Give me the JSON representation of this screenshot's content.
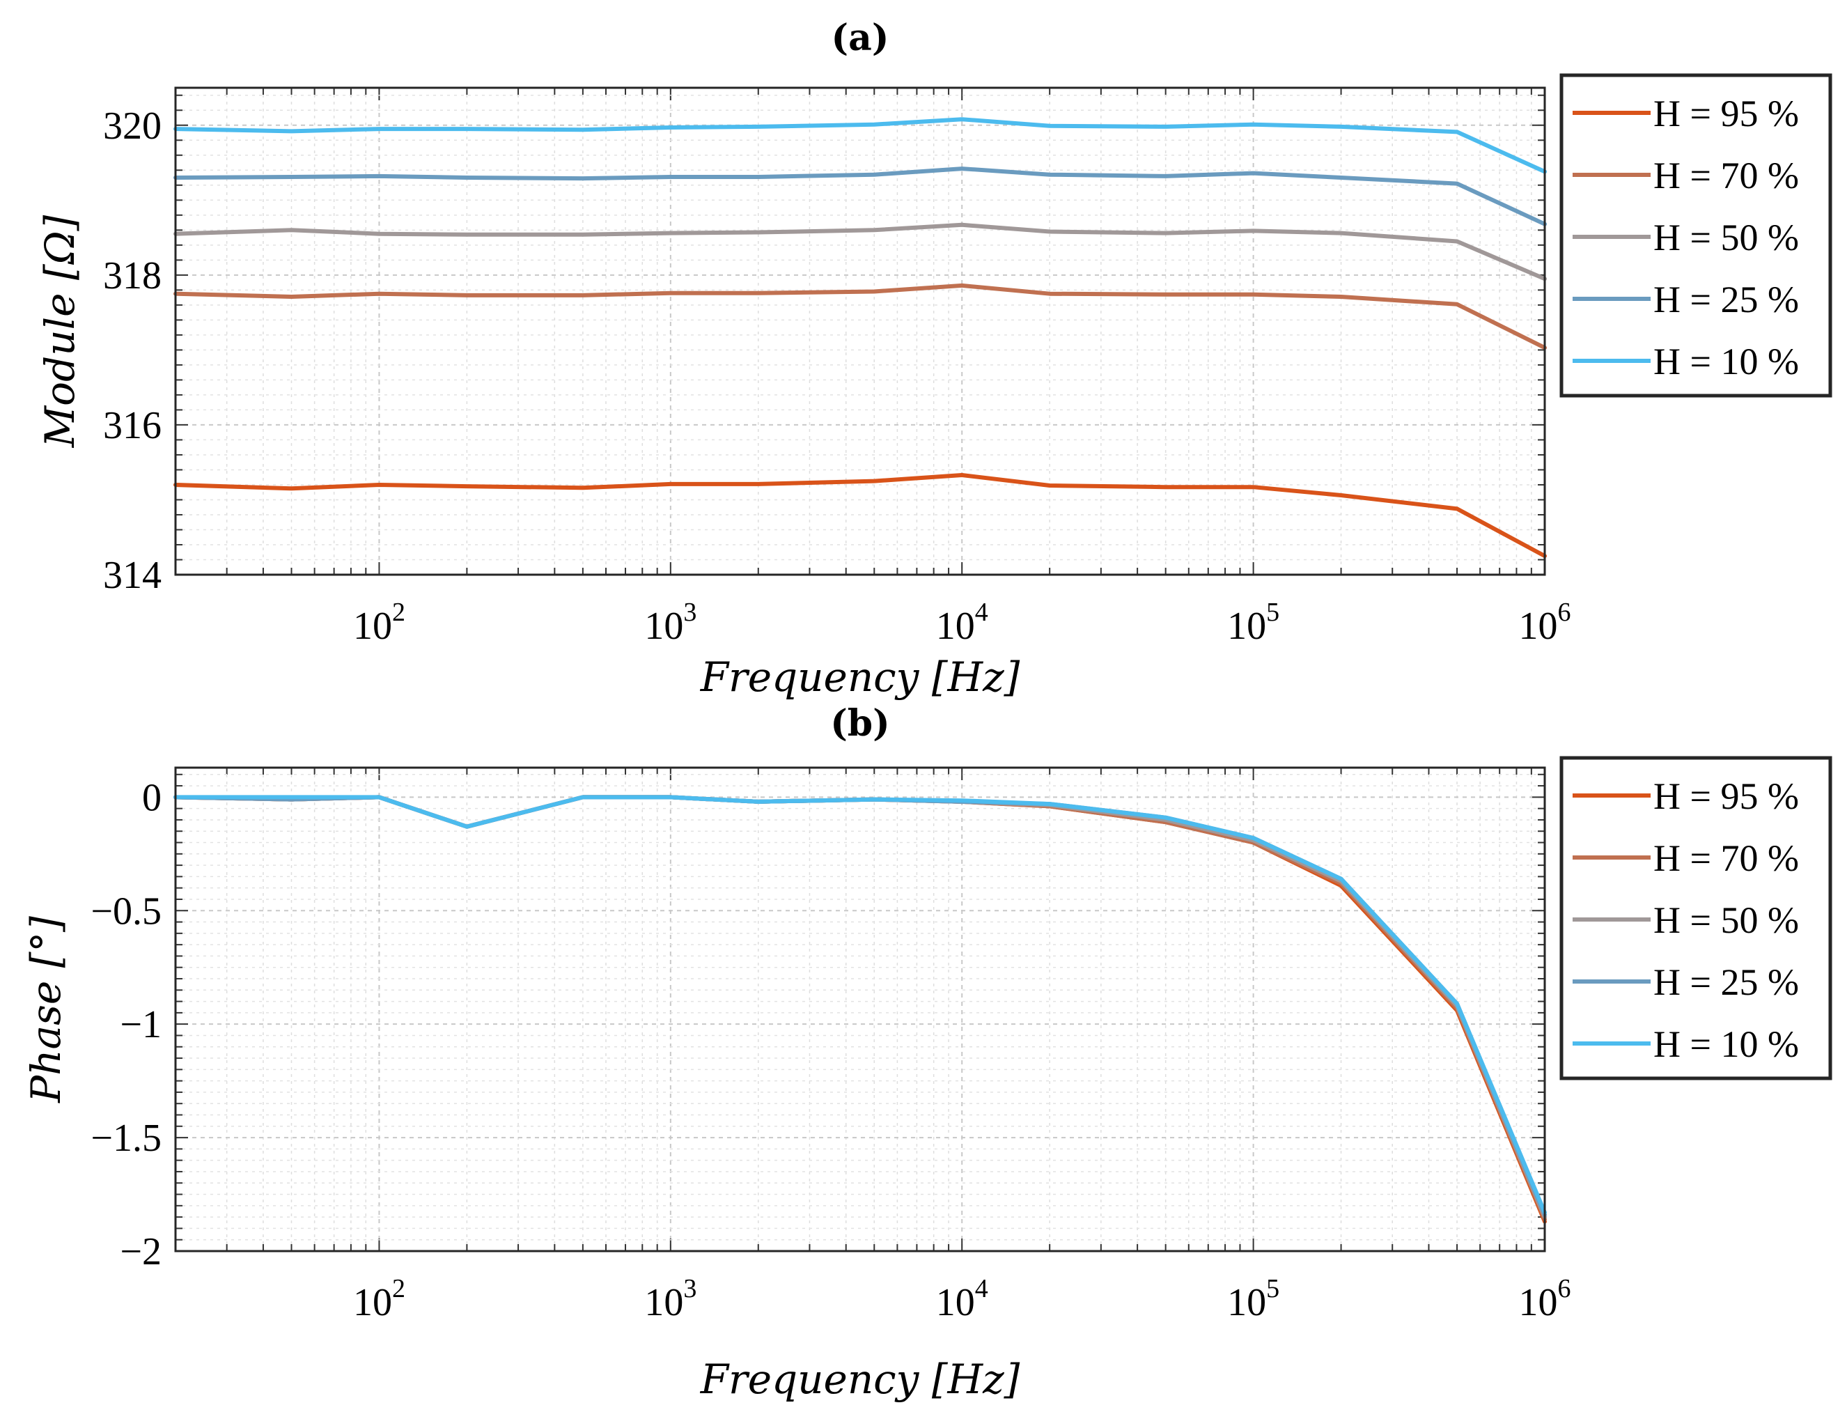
{
  "colors": {
    "H95": "#d95319",
    "H70": "#c07050",
    "H50": "#a09898",
    "H25": "#6a9bbf",
    "H10": "#4cbbee"
  },
  "chart_data": [
    {
      "type": "line",
      "title": "(a)",
      "xlabel": "Frequency [Hz]",
      "ylabel": "Module [Ω]",
      "xscale": "log",
      "xlim": [
        20,
        1000000
      ],
      "ylim": [
        314,
        320.5
      ],
      "yticks": [
        {
          "value": 314,
          "label": "314"
        },
        {
          "value": 316,
          "label": "316"
        },
        {
          "value": 318,
          "label": "318"
        },
        {
          "value": 320,
          "label": "320"
        }
      ],
      "xticks": [
        {
          "value": 100,
          "base": "10",
          "exp": "2"
        },
        {
          "value": 1000,
          "base": "10",
          "exp": "3"
        },
        {
          "value": 10000,
          "base": "10",
          "exp": "4"
        },
        {
          "value": 100000,
          "base": "10",
          "exp": "5"
        },
        {
          "value": 1000000,
          "base": "10",
          "exp": "6"
        }
      ],
      "grid": true,
      "legend_position": "outside-right-top",
      "x": [
        20,
        50,
        100,
        200,
        500,
        1000,
        2000,
        5000,
        10000,
        20000,
        50000,
        100000,
        200000,
        500000,
        1000000
      ],
      "series": [
        {
          "name": "H = 95 %",
          "color_key": "H95",
          "values": [
            315.2,
            315.15,
            315.2,
            315.18,
            315.16,
            315.21,
            315.21,
            315.25,
            315.33,
            315.19,
            315.17,
            315.17,
            315.06,
            314.88,
            314.25
          ]
        },
        {
          "name": "H = 70 %",
          "color_key": "H70",
          "values": [
            317.75,
            317.71,
            317.75,
            317.73,
            317.73,
            317.76,
            317.76,
            317.78,
            317.86,
            317.75,
            317.74,
            317.74,
            317.71,
            317.61,
            317.03
          ]
        },
        {
          "name": "H = 50 %",
          "color_key": "H50",
          "values": [
            318.55,
            318.6,
            318.55,
            318.54,
            318.54,
            318.56,
            318.57,
            318.6,
            318.67,
            318.58,
            318.56,
            318.59,
            318.56,
            318.45,
            317.95
          ]
        },
        {
          "name": "H = 25 %",
          "color_key": "H25",
          "values": [
            319.3,
            319.31,
            319.32,
            319.3,
            319.29,
            319.31,
            319.31,
            319.34,
            319.42,
            319.34,
            319.32,
            319.36,
            319.3,
            319.22,
            318.68
          ]
        },
        {
          "name": "H = 10 %",
          "color_key": "H10",
          "values": [
            319.95,
            319.92,
            319.95,
            319.95,
            319.94,
            319.97,
            319.98,
            320.01,
            320.08,
            319.99,
            319.98,
            320.01,
            319.98,
            319.91,
            319.38
          ]
        }
      ]
    },
    {
      "type": "line",
      "title": "(b)",
      "xlabel": "Frequency [Hz]",
      "ylabel": "Phase [°]",
      "xscale": "log",
      "xlim": [
        20,
        1000000
      ],
      "ylim": [
        -2,
        0.13
      ],
      "yticks": [
        {
          "value": 0,
          "label": "0"
        },
        {
          "value": -0.5,
          "label": "−0.5"
        },
        {
          "value": -1,
          "label": "−1"
        },
        {
          "value": -1.5,
          "label": "−1.5"
        },
        {
          "value": -2,
          "label": "−2"
        }
      ],
      "xticks": [
        {
          "value": 100,
          "base": "10",
          "exp": "2"
        },
        {
          "value": 1000,
          "base": "10",
          "exp": "3"
        },
        {
          "value": 10000,
          "base": "10",
          "exp": "4"
        },
        {
          "value": 100000,
          "base": "10",
          "exp": "5"
        },
        {
          "value": 1000000,
          "base": "10",
          "exp": "6"
        }
      ],
      "grid": true,
      "legend_position": "outside-right-top",
      "x": [
        20,
        50,
        100,
        200,
        500,
        1000,
        2000,
        5000,
        10000,
        20000,
        50000,
        100000,
        200000,
        500000,
        1000000
      ],
      "series": [
        {
          "name": "H = 95 %",
          "color_key": "H95",
          "values": [
            0,
            -0.01,
            0,
            -0.13,
            0,
            0,
            -0.02,
            -0.01,
            -0.02,
            -0.04,
            -0.11,
            -0.2,
            -0.39,
            -0.94,
            -1.87
          ]
        },
        {
          "name": "H = 70 %",
          "color_key": "H70",
          "values": [
            0,
            -0.01,
            0,
            -0.13,
            0,
            0,
            -0.02,
            -0.01,
            -0.02,
            -0.04,
            -0.11,
            -0.2,
            -0.38,
            -0.93,
            -1.86
          ]
        },
        {
          "name": "H = 50 %",
          "color_key": "H50",
          "values": [
            0,
            -0.01,
            0,
            -0.13,
            0,
            0,
            -0.02,
            -0.01,
            -0.02,
            -0.035,
            -0.1,
            -0.19,
            -0.37,
            -0.92,
            -1.85
          ]
        },
        {
          "name": "H = 25 %",
          "color_key": "H25",
          "values": [
            0,
            -0.01,
            0,
            -0.13,
            0,
            0,
            -0.02,
            -0.01,
            -0.02,
            -0.03,
            -0.09,
            -0.18,
            -0.36,
            -0.91,
            -1.84
          ]
        },
        {
          "name": "H = 10 %",
          "color_key": "H10",
          "values": [
            0,
            0,
            0,
            -0.13,
            0,
            0,
            -0.02,
            -0.01,
            -0.015,
            -0.03,
            -0.09,
            -0.18,
            -0.36,
            -0.91,
            -1.83
          ]
        }
      ]
    }
  ]
}
